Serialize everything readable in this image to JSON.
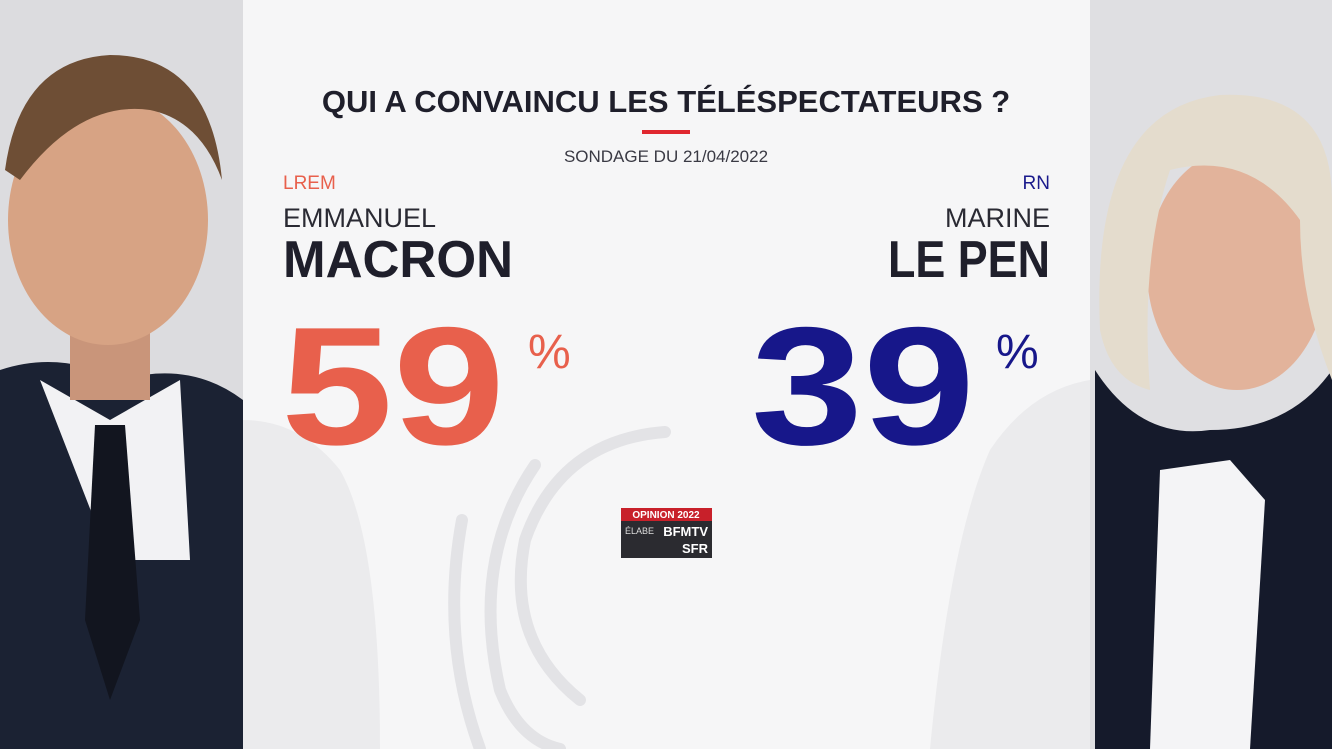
{
  "title": "QUI A CONVAINCU LES TÉLÉSPECTATEURS ?",
  "subtitle": "SONDAGE DU 21/04/2022",
  "candidates": [
    {
      "party": "LREM",
      "first_name": "EMMANUEL",
      "last_name": "MACRON",
      "value": 59,
      "unit": "%"
    },
    {
      "party": "RN",
      "first_name": "MARINE",
      "last_name": "LE PEN",
      "value": 39,
      "unit": "%"
    }
  ],
  "logo": {
    "line1": "OPINION 2022",
    "line2": "ÉLABE",
    "line3": "BFMTV",
    "line4": "SFR"
  }
}
